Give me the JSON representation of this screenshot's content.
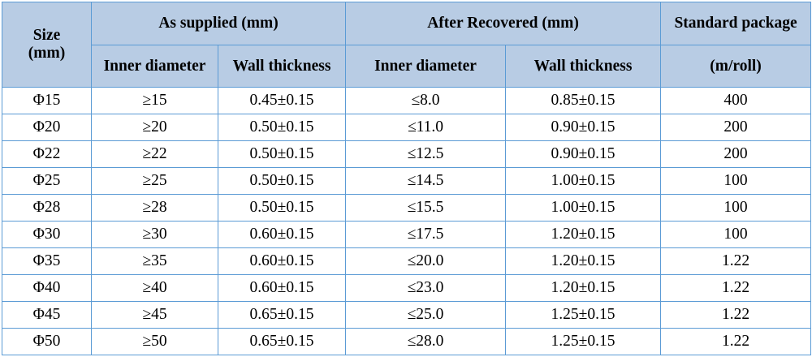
{
  "table": {
    "header": {
      "size_label": "Size",
      "size_unit": "(mm)",
      "as_supplied": "As supplied (mm)",
      "after_recovered": "After Recovered (mm)",
      "standard_package": "Standard package",
      "standard_package_unit": "(m/roll)",
      "inner_diameter": "Inner diameter",
      "wall_thickness": "Wall thickness"
    },
    "rows": [
      [
        "Φ15",
        "≥15",
        "0.45±0.15",
        "≤8.0",
        "0.85±0.15",
        "400"
      ],
      [
        "Φ20",
        "≥20",
        "0.50±0.15",
        "≤11.0",
        "0.90±0.15",
        "200"
      ],
      [
        "Φ22",
        "≥22",
        "0.50±0.15",
        "≤12.5",
        "0.90±0.15",
        "200"
      ],
      [
        "Φ25",
        "≥25",
        "0.50±0.15",
        "≤14.5",
        "1.00±0.15",
        "100"
      ],
      [
        "Φ28",
        "≥28",
        "0.50±0.15",
        "≤15.5",
        "1.00±0.15",
        "100"
      ],
      [
        "Φ30",
        "≥30",
        "0.60±0.15",
        "≤17.5",
        "1.20±0.15",
        "100"
      ],
      [
        "Φ35",
        "≥35",
        "0.60±0.15",
        "≤20.0",
        "1.20±0.15",
        "1.22"
      ],
      [
        "Φ40",
        "≥40",
        "0.60±0.15",
        "≤23.0",
        "1.20±0.15",
        "1.22"
      ],
      [
        "Φ45",
        "≥45",
        "0.65±0.15",
        "≤25.0",
        "1.25±0.15",
        "1.22"
      ],
      [
        "Φ50",
        "≥50",
        "0.65±0.15",
        "≤28.0",
        "1.25±0.15",
        "1.22"
      ]
    ],
    "colors": {
      "header_background": "#b8cce4",
      "border": "#5b9bd5"
    }
  }
}
